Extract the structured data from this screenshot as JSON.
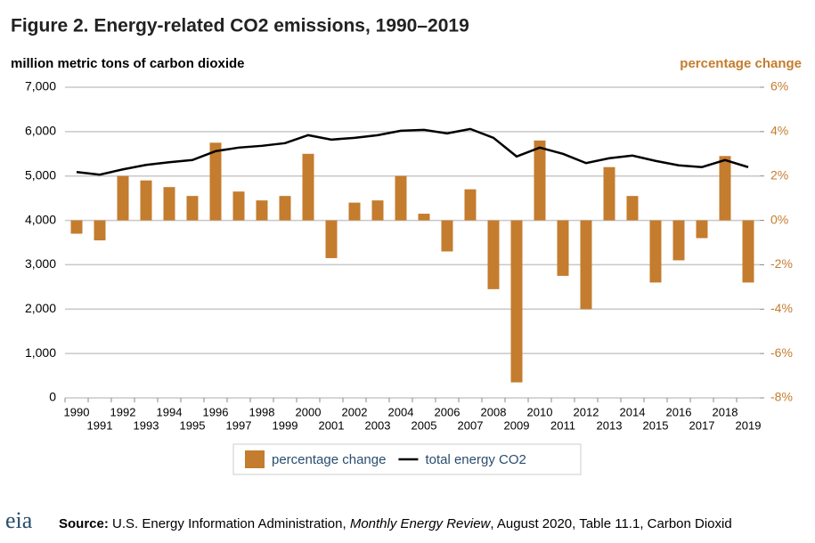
{
  "chart_data": {
    "type": "bar",
    "title": "Figure 2. Energy-related CO2 emissions, 1990–2019",
    "y_label": "million metric tons of carbon dioxide",
    "y2_label": "percentage change",
    "categories": [
      "1990",
      "1991",
      "1992",
      "1993",
      "1994",
      "1995",
      "1996",
      "1997",
      "1998",
      "1999",
      "2000",
      "2001",
      "2002",
      "2003",
      "2004",
      "2005",
      "2006",
      "2007",
      "2008",
      "2009",
      "2010",
      "2011",
      "2012",
      "2013",
      "2014",
      "2015",
      "2016",
      "2017",
      "2018",
      "2019"
    ],
    "series": [
      {
        "name": "percentage change",
        "type": "bar",
        "axis": "y2",
        "color": "#c47c2e",
        "values": [
          -0.6,
          -0.9,
          2.0,
          1.8,
          1.5,
          1.1,
          3.5,
          1.3,
          0.9,
          1.1,
          3.0,
          -1.7,
          0.8,
          0.9,
          2.0,
          0.3,
          -1.4,
          1.4,
          -3.1,
          -7.3,
          3.6,
          -2.5,
          -4.0,
          2.4,
          1.1,
          -2.8,
          -1.8,
          -0.8,
          2.9,
          -2.8
        ]
      },
      {
        "name": "total energy CO2",
        "type": "line",
        "color": "#000000",
        "values": [
          5090,
          5030,
          5150,
          5250,
          5310,
          5360,
          5560,
          5640,
          5680,
          5740,
          5920,
          5820,
          5860,
          5920,
          6020,
          6040,
          5960,
          6060,
          5860,
          5440,
          5640,
          5500,
          5290,
          5400,
          5460,
          5340,
          5240,
          5200,
          5360,
          5200
        ]
      }
    ],
    "ylim": [
      0,
      7000
    ],
    "yticks": [
      0,
      {
        "value": 1000,
        "label": "1,000"
      },
      {
        "value": 2000,
        "label": "2,000"
      },
      {
        "value": 3000,
        "label": "3,000"
      },
      {
        "value": 4000,
        "label": "4,000"
      },
      {
        "value": 5000,
        "label": "5,000"
      },
      {
        "value": 6000,
        "label": "6,000"
      },
      {
        "value": 7000,
        "label": "7,000"
      }
    ],
    "y2lim": [
      -8,
      6
    ],
    "y2ticks": [
      {
        "value": -8,
        "label": "-8%"
      },
      {
        "value": -6,
        "label": "-6%"
      },
      {
        "value": -4,
        "label": "-4%"
      },
      {
        "value": -2,
        "label": "-2%"
      },
      {
        "value": 0,
        "label": "0%"
      },
      {
        "value": 2,
        "label": "2%"
      },
      {
        "value": 4,
        "label": "4%"
      },
      {
        "value": 6,
        "label": "6%"
      }
    ],
    "y2_color": "#c47c2e",
    "grid": true,
    "legend": "bottom"
  },
  "source": {
    "label": "Source:",
    "text1": "U.S. Energy Information Administration, ",
    "italic": "Monthly Energy Review",
    "text2": ", August 2020, Table 11.1, Carbon Dioxid",
    "logo": "eia"
  }
}
